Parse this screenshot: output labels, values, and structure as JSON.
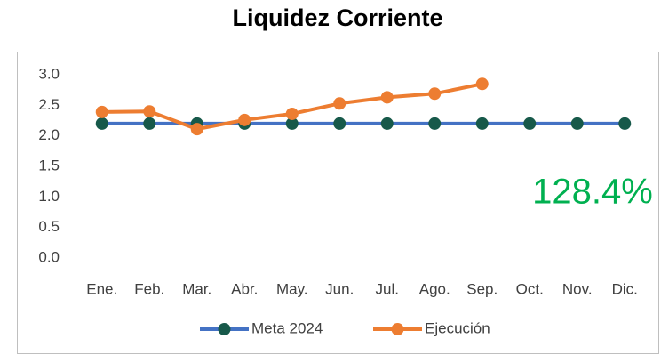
{
  "chart_data": {
    "type": "line",
    "title": "Liquidez Corriente",
    "categories": [
      "Ene.",
      "Feb.",
      "Mar.",
      "Abr.",
      "May.",
      "Jun.",
      "Jul.",
      "Ago.",
      "Sep.",
      "Oct.",
      "Nov.",
      "Dic."
    ],
    "series": [
      {
        "name": "Meta 2024",
        "color": "#4472c4",
        "marker_color": "#17594a",
        "values": [
          2.2,
          2.2,
          2.2,
          2.2,
          2.2,
          2.2,
          2.2,
          2.2,
          2.2,
          2.2,
          2.2,
          2.2
        ]
      },
      {
        "name": "Ejecución",
        "color": "#ed7d31",
        "marker_color": "#ed7d31",
        "values": [
          2.39,
          2.4,
          2.11,
          2.26,
          2.36,
          2.53,
          2.63,
          2.69,
          2.85,
          null,
          null,
          null
        ]
      }
    ],
    "ylim": [
      0,
      3
    ],
    "yticks": [
      {
        "value": 0,
        "label": "0.0"
      },
      0.5,
      {
        "value": 1,
        "label": "1.0"
      },
      1.5,
      {
        "value": 2,
        "label": "2.0"
      },
      2.5,
      {
        "value": 3,
        "label": "3.0"
      }
    ],
    "grid": false,
    "legend": "bottom",
    "annotation": {
      "text": "128.4%",
      "color": "#00b050"
    }
  }
}
